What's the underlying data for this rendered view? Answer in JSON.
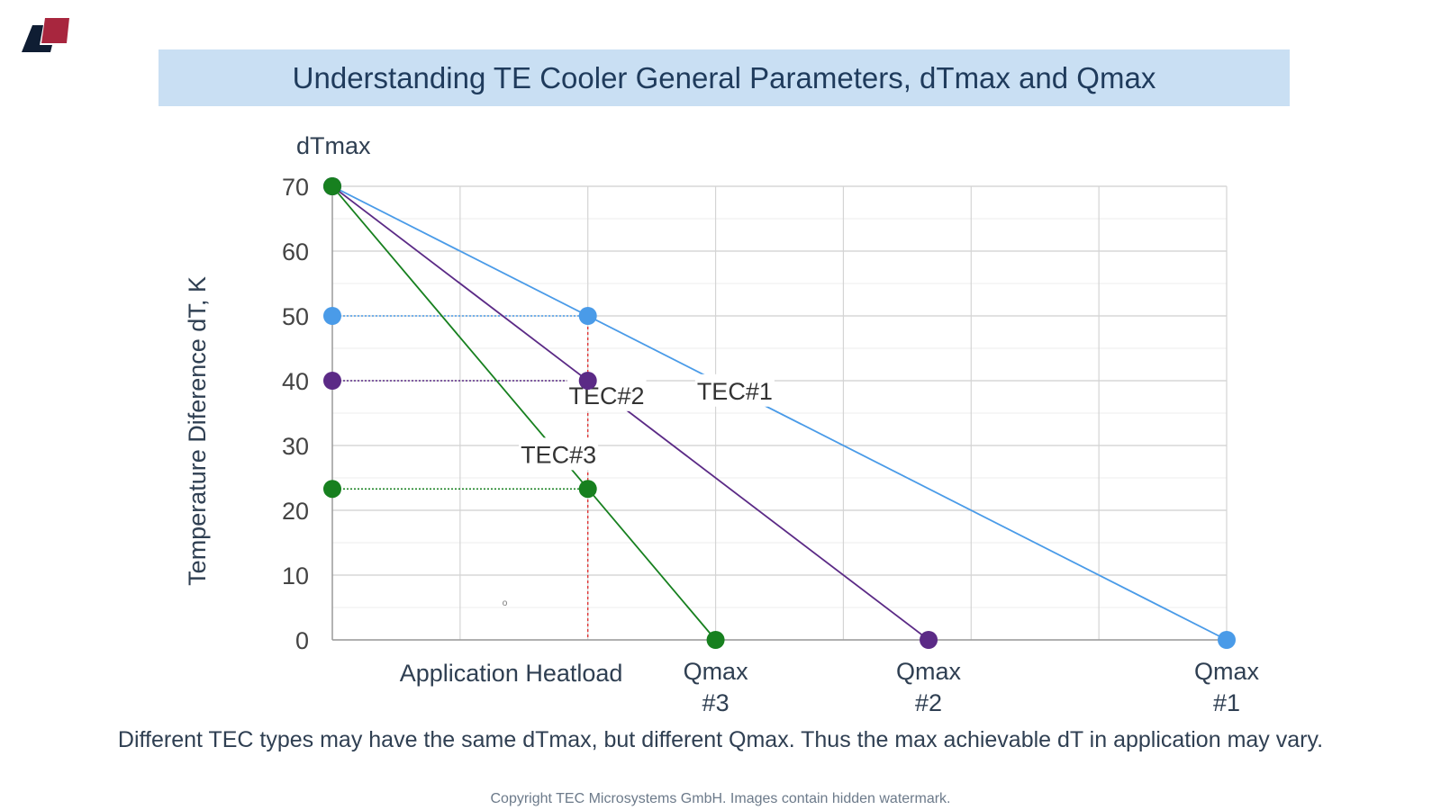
{
  "logo": {
    "name": "tec-microsystems-logo",
    "colors": [
      "#0f1d33",
      "#a8263e"
    ]
  },
  "header": {
    "title": "Understanding TE Cooler General Parameters, dTmax and Qmax"
  },
  "chart_data": {
    "type": "line",
    "ylabel": "Temperature Diference dT, K",
    "ytitle_top": "dTmax",
    "ylim": [
      0,
      70
    ],
    "yticks": [
      0,
      10,
      20,
      30,
      40,
      50,
      60,
      70
    ],
    "grid": true,
    "xlabel": "Application Heatload",
    "xlim": [
      0,
      7
    ],
    "application_heatload_x": 2,
    "series": [
      {
        "name": "TEC#1",
        "color": "#4a9be8",
        "x": [
          0,
          7
        ],
        "y": [
          70,
          0
        ],
        "application_point": 50,
        "qmax_label": [
          "Qmax",
          "#1"
        ]
      },
      {
        "name": "TEC#2",
        "color": "#5b2a86",
        "x": [
          0,
          4.667
        ],
        "y": [
          70,
          0
        ],
        "application_point": 40,
        "qmax_label": [
          "Qmax",
          "#2"
        ]
      },
      {
        "name": "TEC#3",
        "color": "#17801f",
        "x": [
          0,
          3
        ],
        "y": [
          70,
          0
        ],
        "application_point": 23.3,
        "qmax_label": [
          "Qmax",
          "#3"
        ]
      }
    ],
    "stray_mark": "o"
  },
  "caption": "Different TEC types may have the same dTmax, but different Qmax. Thus the max achievable dT in application may vary.",
  "copyright": "Copyright TEC Microsystems GmbH. Images contain hidden watermark."
}
